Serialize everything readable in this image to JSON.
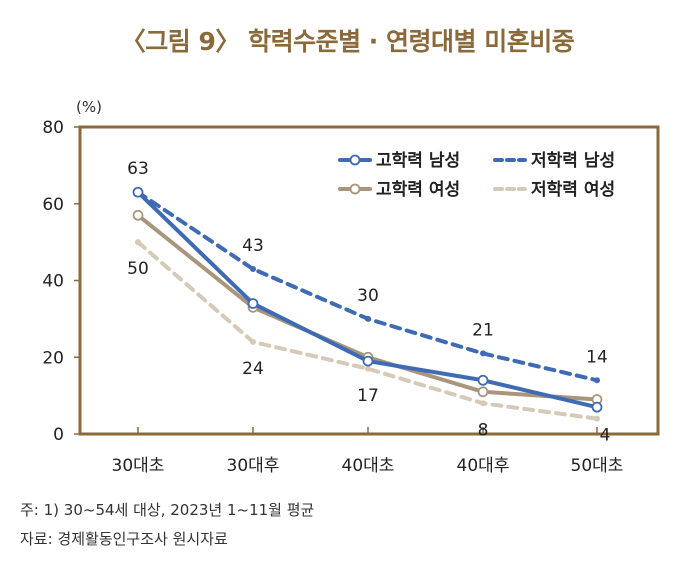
{
  "title": "〈그림 9〉 학력수준별 · 연령대별 미혼비중",
  "unit_label": "(%)",
  "notes": [
    "주: 1) 30~54세 대상, 2023년 1~11월 평균",
    "자료: 경제활동인구조사 원시자료"
  ],
  "colors": {
    "axis_frame": "#8a6a3a",
    "high_edu_male": "#3f6bb5",
    "low_edu_male": "#3f6bb5",
    "high_edu_female": "#a8957b",
    "low_edu_female": "#d5c9b8"
  },
  "chart_data": {
    "type": "line",
    "categories": [
      "30대초",
      "30대후",
      "40대초",
      "40대후",
      "50대초"
    ],
    "ylim": [
      0,
      80
    ],
    "yticks": [
      0,
      20,
      40,
      60,
      80
    ],
    "ylabel": "(%)",
    "legend_placement": "top-right",
    "grid": false,
    "series": [
      {
        "name": "고학력 남성",
        "values": [
          63,
          34,
          19,
          14,
          7
        ],
        "color": "#3f6bb5",
        "style": "solid",
        "markers": true,
        "labels_shown": false
      },
      {
        "name": "저학력 남성",
        "values": [
          63,
          43,
          30,
          21,
          14
        ],
        "color": "#3f6bb5",
        "style": "dashed",
        "markers": false,
        "labels_shown": true
      },
      {
        "name": "고학력 여성",
        "values": [
          57,
          33,
          20,
          11,
          9
        ],
        "color": "#a8957b",
        "style": "solid",
        "markers": true,
        "labels_shown": false
      },
      {
        "name": "저학력 여성",
        "values": [
          50,
          24,
          17,
          8,
          4
        ],
        "color": "#d5c9b8",
        "style": "dashed",
        "markers": false,
        "labels_shown": true
      }
    ]
  }
}
